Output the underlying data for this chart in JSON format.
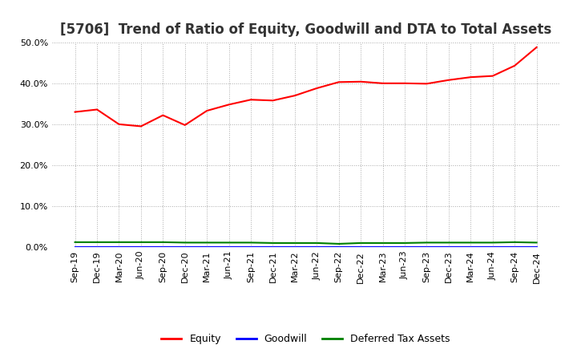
{
  "title": "[5706]  Trend of Ratio of Equity, Goodwill and DTA to Total Assets",
  "x_labels": [
    "Sep-19",
    "Dec-19",
    "Mar-20",
    "Jun-20",
    "Sep-20",
    "Dec-20",
    "Mar-21",
    "Jun-21",
    "Sep-21",
    "Dec-21",
    "Mar-22",
    "Jun-22",
    "Sep-22",
    "Dec-22",
    "Mar-23",
    "Jun-23",
    "Sep-23",
    "Dec-23",
    "Mar-24",
    "Jun-24",
    "Sep-24",
    "Dec-24"
  ],
  "equity": [
    0.33,
    0.336,
    0.3,
    0.295,
    0.322,
    0.298,
    0.333,
    0.348,
    0.36,
    0.358,
    0.37,
    0.388,
    0.403,
    0.404,
    0.4,
    0.4,
    0.399,
    0.408,
    0.415,
    0.418,
    0.443,
    0.488
  ],
  "goodwill": [
    0.0,
    0.0,
    0.0,
    0.0,
    0.0,
    0.0,
    0.0,
    0.0,
    0.0,
    0.0,
    0.0,
    0.0,
    0.0,
    0.0,
    0.0,
    0.0,
    0.0,
    0.0,
    0.0,
    0.0,
    0.0,
    0.0
  ],
  "dta": [
    0.012,
    0.012,
    0.012,
    0.012,
    0.012,
    0.011,
    0.011,
    0.011,
    0.011,
    0.01,
    0.01,
    0.01,
    0.008,
    0.01,
    0.01,
    0.01,
    0.011,
    0.011,
    0.011,
    0.011,
    0.012,
    0.011
  ],
  "equity_color": "#FF0000",
  "goodwill_color": "#0000FF",
  "dta_color": "#008000",
  "ylim": [
    0.0,
    0.5
  ],
  "yticks": [
    0.0,
    0.1,
    0.2,
    0.3,
    0.4,
    0.5
  ],
  "background_color": "#FFFFFF",
  "plot_bg_color": "#FFFFFF",
  "grid_color": "#AAAAAA",
  "title_fontsize": 12,
  "tick_fontsize": 8,
  "legend_labels": [
    "Equity",
    "Goodwill",
    "Deferred Tax Assets"
  ]
}
